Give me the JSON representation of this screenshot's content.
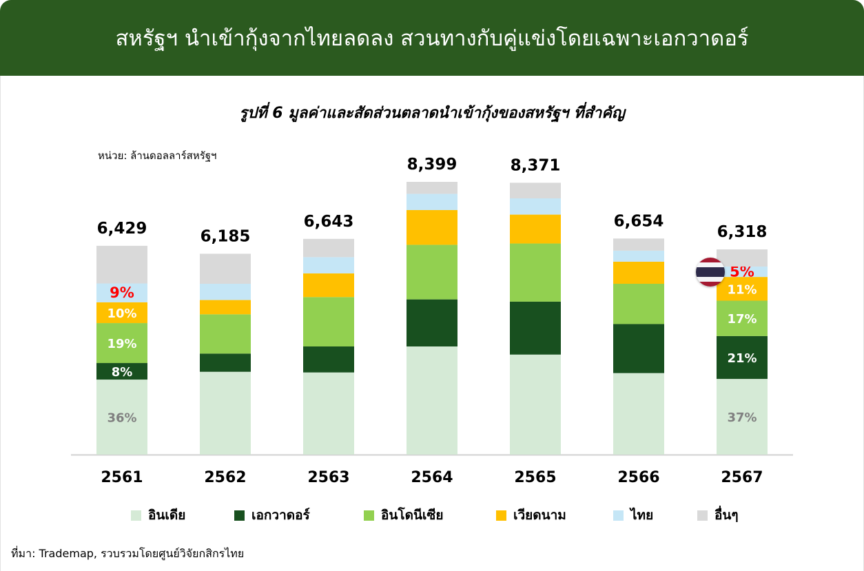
{
  "header": {
    "title": "สหรัฐฯ นำเข้ากุ้งจากไทยลดลง สวนทางกับคู่แข่งโดยเฉพาะเอกวาดอร์"
  },
  "figure": {
    "title": "รูปที่ 6 มูลค่าและสัดส่วนตลาดนำเข้ากุ้งของสหรัฐฯ ที่สำคัญ",
    "unit": "หน่วย: ล้านดอลลาร์สหรัฐฯ",
    "source": "ที่มา: Trademap, รวบรวมโดยศูนย์วิจัยกสิกรไทย"
  },
  "flag": {
    "icon": "thailand-flag-icon",
    "colors": [
      "#a51931",
      "#f4f5f8",
      "#2d2a4a"
    ]
  },
  "chart_data": {
    "type": "bar",
    "stacked": true,
    "categories": [
      "2561",
      "2562",
      "2563",
      "2564",
      "2565",
      "2566",
      "2567"
    ],
    "totals": [
      6429,
      6185,
      6643,
      8399,
      8371,
      6654,
      6318
    ],
    "total_labels": [
      "6,429",
      "6,185",
      "6,643",
      "8,399",
      "8,371",
      "6,654",
      "6,318"
    ],
    "ylim": [
      0,
      8399
    ],
    "grid": false,
    "legend_position": "bottom",
    "series": [
      {
        "name": "อินเดีย",
        "color": "#d5ead6",
        "values": [
          2310,
          2550,
          2530,
          3330,
          3080,
          2510,
          2330
        ],
        "labels": [
          "36%",
          "",
          "",
          "",
          "",
          "",
          "37%"
        ],
        "label_colors": [
          "#808080",
          "",
          "",
          "",
          "",
          "",
          "#808080"
        ]
      },
      {
        "name": "เอกวาดอร์",
        "color": "#18501f",
        "values": [
          510,
          560,
          800,
          1450,
          1630,
          1510,
          1320
        ],
        "labels": [
          "8%",
          "",
          "",
          "",
          "",
          "",
          "21%"
        ],
        "label_colors": [
          "#ffffff",
          "",
          "",
          "",
          "",
          "",
          "#ffffff"
        ]
      },
      {
        "name": "อินโดนีเซีย",
        "color": "#92d050",
        "values": [
          1230,
          1210,
          1520,
          1680,
          1790,
          1240,
          1090
        ],
        "labels": [
          "19%",
          "",
          "",
          "",
          "",
          "",
          "17%"
        ],
        "label_colors": [
          "#ffffff",
          "",
          "",
          "",
          "",
          "",
          "#ffffff"
        ]
      },
      {
        "name": "เวียดนาม",
        "color": "#ffc000",
        "values": [
          640,
          440,
          730,
          1070,
          890,
          680,
          730
        ],
        "labels": [
          "10%",
          "",
          "",
          "",
          "",
          "",
          "11%"
        ],
        "label_colors": [
          "#ffffff",
          "",
          "",
          "",
          "",
          "",
          "#ffffff"
        ]
      },
      {
        "name": "ไทย",
        "color": "#c5e6f6",
        "values": [
          580,
          500,
          500,
          500,
          500,
          340,
          320
        ],
        "labels": [
          "9%",
          "",
          "",
          "",
          "",
          "",
          "5%"
        ],
        "label_colors": [
          "#ff0000",
          "",
          "",
          "",
          "",
          "",
          "#ff0000"
        ]
      },
      {
        "name": "อื่นๆ",
        "color": "#d9d9d9",
        "values": [
          1159,
          925,
          563,
          369,
          481,
          374,
          528
        ],
        "labels": [
          "",
          "",
          "",
          "",
          "",
          "",
          ""
        ],
        "label_colors": [
          "",
          "",
          "",
          "",
          "",
          "",
          ""
        ]
      }
    ]
  }
}
